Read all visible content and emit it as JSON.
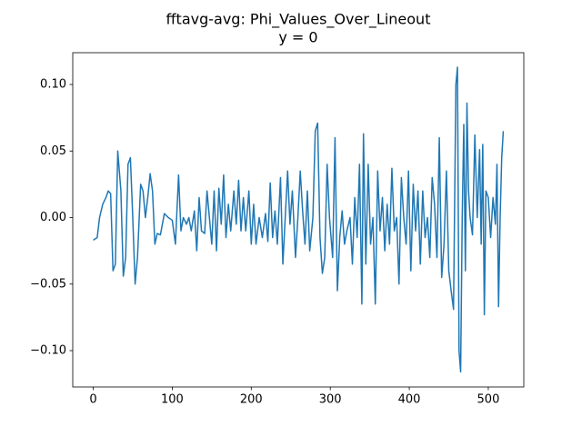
{
  "chart_data": {
    "type": "line",
    "title": "fftavg-avg: Phi_Values_Over_Lineout",
    "subtitle": "y = 0",
    "x": [
      0,
      5,
      8,
      12,
      16,
      19,
      22,
      25,
      28,
      31,
      35,
      38,
      41,
      44,
      47,
      50,
      53,
      56,
      60,
      63,
      66,
      69,
      72,
      75,
      78,
      81,
      85,
      90,
      95,
      100,
      104,
      108,
      111,
      114,
      118,
      121,
      124,
      128,
      131,
      134,
      137,
      141,
      144,
      147,
      150,
      153,
      156,
      159,
      162,
      165,
      168,
      171,
      174,
      178,
      181,
      184,
      187,
      190,
      193,
      197,
      200,
      203,
      206,
      210,
      214,
      218,
      221,
      224,
      227,
      230,
      233,
      237,
      240,
      243,
      246,
      249,
      252,
      256,
      259,
      262,
      265,
      268,
      271,
      274,
      278,
      281,
      284,
      287,
      290,
      293,
      296,
      299,
      303,
      306,
      309,
      312,
      315,
      318,
      321,
      325,
      328,
      331,
      334,
      337,
      340,
      342,
      345,
      348,
      351,
      354,
      357,
      360,
      363,
      366,
      369,
      372,
      375,
      378,
      381,
      384,
      387,
      390,
      393,
      396,
      399,
      402,
      405,
      408,
      411,
      414,
      417,
      420,
      423,
      426,
      429,
      432,
      435,
      438,
      441,
      444,
      447,
      450,
      453,
      456,
      459,
      461,
      463,
      465,
      467,
      469,
      471,
      473,
      475,
      477,
      480,
      483,
      486,
      489,
      491,
      493,
      495,
      497,
      500,
      503,
      506,
      509,
      511,
      513,
      515,
      517,
      519
    ],
    "series": [
      {
        "name": "Phi",
        "color": "#1f77b4",
        "values": [
          -0.017,
          -0.015,
          0.0,
          0.01,
          0.015,
          0.02,
          0.018,
          -0.04,
          -0.035,
          0.05,
          0.02,
          -0.044,
          -0.03,
          0.04,
          0.045,
          0.0,
          -0.05,
          -0.03,
          0.025,
          0.02,
          0.0,
          0.015,
          0.033,
          0.02,
          -0.02,
          -0.012,
          -0.013,
          0.003,
          0.0,
          -0.002,
          -0.02,
          0.032,
          -0.01,
          0.0,
          -0.005,
          0.0,
          -0.01,
          0.005,
          -0.025,
          0.015,
          -0.01,
          -0.012,
          0.02,
          0.0,
          -0.02,
          0.02,
          -0.025,
          0.022,
          -0.005,
          0.032,
          -0.015,
          0.01,
          -0.01,
          0.02,
          -0.005,
          0.028,
          -0.01,
          0.015,
          -0.01,
          0.02,
          -0.02,
          0.01,
          -0.02,
          0.0,
          -0.015,
          0.003,
          -0.018,
          0.026,
          -0.015,
          0.005,
          -0.02,
          0.03,
          -0.035,
          0.0,
          0.035,
          -0.005,
          0.02,
          -0.03,
          0.0,
          0.035,
          0.005,
          -0.02,
          0.02,
          -0.025,
          0.0,
          0.065,
          0.071,
          -0.015,
          -0.042,
          -0.03,
          0.04,
          0.0,
          -0.03,
          0.06,
          -0.055,
          -0.015,
          0.005,
          -0.02,
          -0.01,
          0.0,
          -0.035,
          0.015,
          -0.015,
          0.04,
          -0.065,
          0.063,
          -0.035,
          0.04,
          -0.02,
          0.0,
          -0.065,
          0.035,
          -0.01,
          0.015,
          -0.025,
          0.01,
          -0.02,
          0.037,
          -0.01,
          0.0,
          -0.05,
          0.03,
          0.0,
          -0.02,
          0.035,
          -0.04,
          0.025,
          -0.01,
          0.02,
          -0.035,
          0.02,
          -0.015,
          0.0,
          -0.03,
          0.03,
          0.01,
          -0.03,
          0.06,
          -0.045,
          -0.02,
          0.035,
          -0.04,
          -0.055,
          -0.069,
          0.1,
          0.113,
          -0.1,
          -0.116,
          0.0,
          0.07,
          -0.04,
          0.086,
          0.02,
          0.0,
          -0.013,
          0.062,
          0.0,
          0.051,
          -0.02,
          0.055,
          -0.073,
          0.02,
          0.015,
          -0.015,
          0.015,
          -0.005,
          0.04,
          -0.067,
          0.0,
          0.045,
          0.065
        ]
      }
    ],
    "xlim": [
      -25.95,
      544.95
    ],
    "ylim": [
      -0.1273,
      0.1239
    ],
    "xticks": [
      0,
      100,
      200,
      300,
      400,
      500
    ],
    "yticks": [
      {
        "value": -0.1,
        "label": "−0.10"
      },
      {
        "value": -0.05,
        "label": "−0.05"
      },
      {
        "value": 0,
        "label": "0.00"
      },
      {
        "value": 0.05,
        "label": "0.05"
      },
      {
        "value": 0.1,
        "label": "0.10"
      }
    ]
  }
}
